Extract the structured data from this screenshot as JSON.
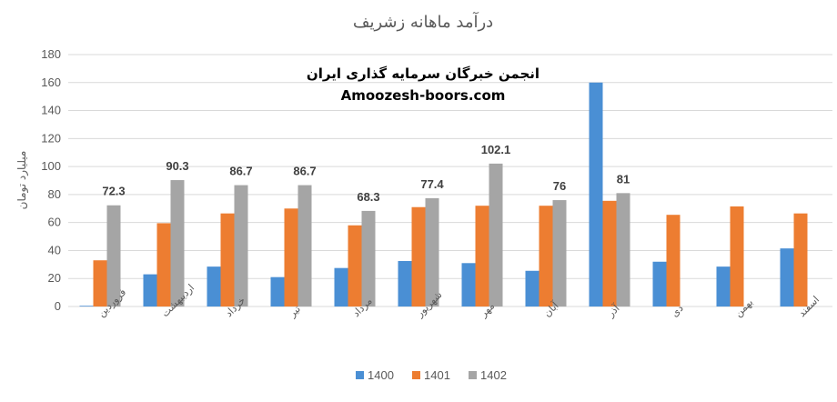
{
  "chart_data": {
    "type": "bar",
    "title": "درآمد ماهانه زشریف",
    "xlabel": "",
    "ylabel": "میلیارد تومان",
    "ylim": [
      0,
      180
    ],
    "yticks": [
      0,
      20,
      40,
      60,
      80,
      100,
      120,
      140,
      160,
      180
    ],
    "grid": true,
    "legend_position": "bottom",
    "categories": [
      "فروردین",
      "اردیبهشت",
      "خرداد",
      "تیر",
      "مرداد",
      "شهریور",
      "مهر",
      "آبان",
      "آذر",
      "دی",
      "بهمن",
      "اسفند"
    ],
    "series": [
      {
        "name": "1400",
        "color": "#4a8fd4",
        "values": [
          0.5,
          23,
          28.5,
          21,
          27.5,
          32.5,
          31,
          25.5,
          160,
          32,
          28.5,
          41.5
        ]
      },
      {
        "name": "1401",
        "color": "#ed7d31",
        "values": [
          33,
          59.5,
          66.5,
          70,
          58,
          71,
          72,
          72,
          75.5,
          65.5,
          71.5,
          66.5
        ]
      },
      {
        "name": "1402",
        "color": "#a5a5a5",
        "values": [
          72.3,
          90.3,
          86.7,
          86.7,
          68.3,
          77.4,
          102.1,
          76,
          81,
          null,
          null,
          null
        ]
      }
    ],
    "data_labels": {
      "series": "1402",
      "labels": [
        "72.3",
        "90.3",
        "86.7",
        "86.7",
        "68.3",
        "77.4",
        "102.1",
        "76",
        "81",
        "",
        "",
        ""
      ]
    },
    "watermark": {
      "line1": "انجمن خبرگان سرمایه گذاری ایران",
      "line2": "Amoozesh-boors.com"
    }
  }
}
